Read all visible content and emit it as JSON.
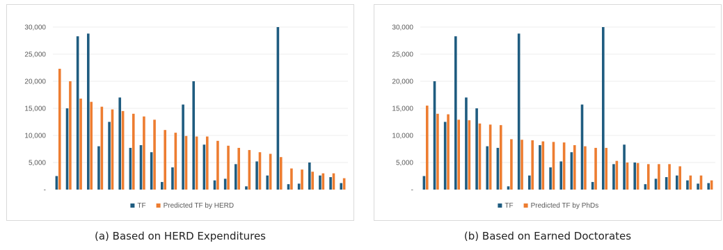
{
  "chart_data": [
    {
      "type": "bar",
      "categories": [
        "",
        "",
        "",
        "",
        "",
        "",
        "",
        "",
        "",
        "",
        "",
        "",
        "",
        "",
        "",
        "",
        "",
        "",
        "",
        "",
        "",
        "",
        "",
        "",
        "",
        "",
        "",
        ""
      ],
      "series": [
        {
          "name": "TF",
          "color": "#1f5c80",
          "values": [
            2500,
            15000,
            28300,
            28800,
            8000,
            12500,
            17000,
            7700,
            8200,
            6900,
            1400,
            4100,
            15700,
            20000,
            8300,
            1700,
            2000,
            4700,
            600,
            5200,
            2600,
            30000,
            1000,
            1100,
            5000,
            2600,
            2300,
            1200
          ]
        },
        {
          "name": "Predicted TF by HERD",
          "color": "#ed7d31",
          "values": [
            22300,
            20000,
            16800,
            16200,
            15300,
            14800,
            14500,
            14000,
            13500,
            12900,
            11000,
            10500,
            9900,
            9800,
            9800,
            9000,
            8100,
            7700,
            7300,
            6900,
            6600,
            6000,
            3900,
            3700,
            3300,
            3000,
            3000,
            2100
          ]
        }
      ],
      "yticks": [
        "30,000",
        "25,000",
        "20,000",
        "15,000",
        "10,000",
        "5,000",
        "-"
      ],
      "ylim": [
        0,
        30000
      ],
      "legend": "bottom",
      "grid": true
    },
    {
      "type": "bar",
      "categories": [
        "",
        "",
        "",
        "",
        "",
        "",
        "",
        "",
        "",
        "",
        "",
        "",
        "",
        "",
        "",
        "",
        "",
        "",
        "",
        "",
        "",
        "",
        "",
        "",
        "",
        "",
        "",
        ""
      ],
      "series": [
        {
          "name": "TF",
          "color": "#1f5c80",
          "values": [
            2500,
            20000,
            12500,
            28300,
            17000,
            15000,
            8000,
            7700,
            600,
            28800,
            2600,
            8200,
            4100,
            5200,
            6900,
            15700,
            1400,
            30000,
            4700,
            8300,
            5000,
            1000,
            2000,
            2300,
            2600,
            1700,
            1100,
            1200
          ]
        },
        {
          "name": "Predicted TF by PhDs",
          "color": "#ed7d31",
          "values": [
            15500,
            14000,
            13900,
            12900,
            12800,
            12200,
            12000,
            11900,
            9300,
            9200,
            9100,
            8900,
            8800,
            8700,
            8200,
            8000,
            7700,
            7700,
            5300,
            5000,
            4900,
            4700,
            4700,
            4700,
            4300,
            2600,
            2600,
            1700
          ]
        }
      ],
      "yticks": [
        "30,000",
        "25,000",
        "20,000",
        "15,000",
        "10,000",
        "5,000",
        "-"
      ],
      "ylim": [
        0,
        30000
      ],
      "legend": "bottom",
      "grid": true
    }
  ],
  "captions": [
    "(a) Based on HERD Expenditures",
    "(b) Based on Earned Doctorates"
  ]
}
